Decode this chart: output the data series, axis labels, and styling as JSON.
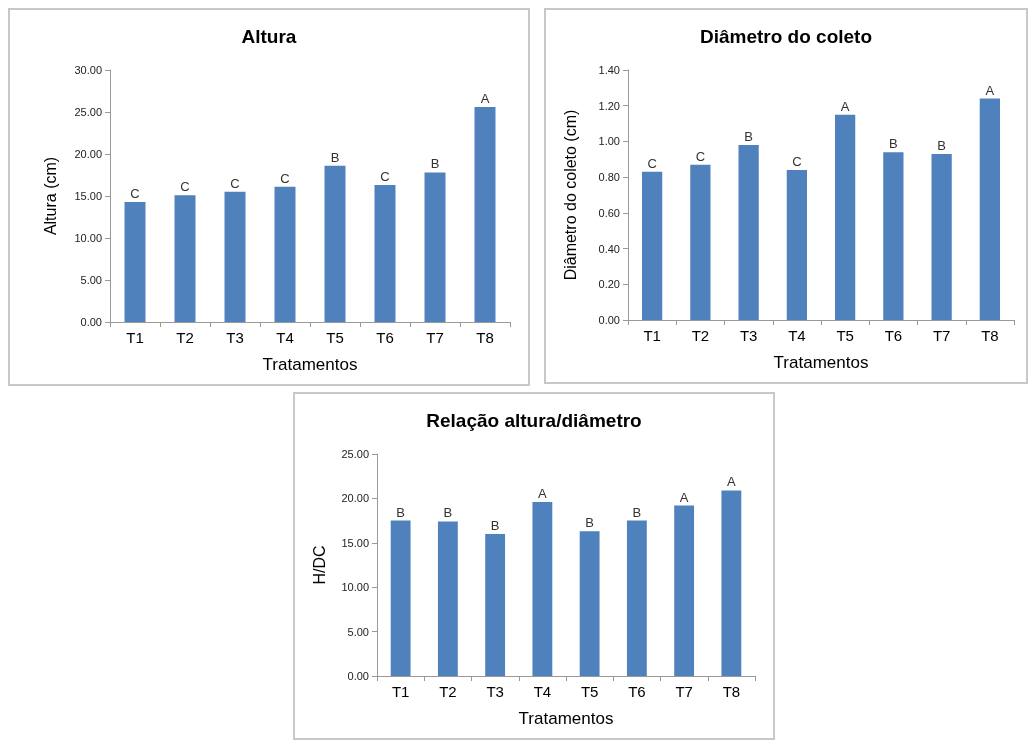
{
  "chart_data": [
    {
      "type": "bar",
      "title": "Altura",
      "xlabel": "Tratamentos",
      "ylabel": "Altura (cm)",
      "categories": [
        "T1",
        "T2",
        "T3",
        "T4",
        "T5",
        "T6",
        "T7",
        "T8"
      ],
      "values": [
        14.3,
        15.1,
        15.5,
        16.1,
        18.6,
        16.3,
        17.8,
        25.6
      ],
      "color": "#4f81bd",
      "value_labels": [
        "C",
        "C",
        "C",
        "C",
        "B",
        "C",
        "B",
        "A"
      ],
      "ylim": [
        0,
        30
      ],
      "yticks": [
        {
          "value": 0,
          "label": "0.00"
        },
        {
          "value": 5,
          "label": "5.00"
        },
        {
          "value": 10,
          "label": "10.00"
        },
        {
          "value": 15,
          "label": "15.00"
        },
        {
          "value": 20,
          "label": "20.00"
        },
        {
          "value": 25,
          "label": "25.00"
        },
        {
          "value": 30,
          "label": "30.00"
        }
      ],
      "grid": false
    },
    {
      "type": "bar",
      "title": "Diâmetro do coleto",
      "xlabel": "Tratamentos",
      "ylabel": "Diâmetro do coleto (cm)",
      "categories": [
        "T1",
        "T2",
        "T3",
        "T4",
        "T5",
        "T6",
        "T7",
        "T8"
      ],
      "values": [
        0.83,
        0.87,
        0.98,
        0.84,
        1.15,
        0.94,
        0.93,
        1.24
      ],
      "color": "#4f81bd",
      "value_labels": [
        "C",
        "C",
        "B",
        "C",
        "A",
        "B",
        "B",
        "A"
      ],
      "ylim": [
        0,
        1.4
      ],
      "yticks": [
        {
          "value": 0,
          "label": "0.00"
        },
        {
          "value": 0.2,
          "label": "0.20"
        },
        {
          "value": 0.4,
          "label": "0.40"
        },
        {
          "value": 0.6,
          "label": "0.60"
        },
        {
          "value": 0.8,
          "label": "0.80"
        },
        {
          "value": 1,
          "label": "1.00"
        },
        {
          "value": 1.2,
          "label": "1.20"
        },
        {
          "value": 1.4,
          "label": "1.40"
        }
      ],
      "grid": false
    },
    {
      "type": "bar",
      "title": "Relação altura/diâmetro",
      "xlabel": "Tratamentos",
      "ylabel": "H/DC",
      "categories": [
        "T1",
        "T2",
        "T3",
        "T4",
        "T5",
        "T6",
        "T7",
        "T8"
      ],
      "values": [
        17.5,
        17.4,
        16.0,
        19.6,
        16.3,
        17.5,
        19.2,
        20.9
      ],
      "color": "#4f81bd",
      "value_labels": [
        "B",
        "B",
        "B",
        "A",
        "B",
        "B",
        "A",
        "A"
      ],
      "ylim": [
        0,
        25
      ],
      "yticks": [
        {
          "value": 0,
          "label": "0.00"
        },
        {
          "value": 5,
          "label": "5.00"
        },
        {
          "value": 10,
          "label": "10.00"
        },
        {
          "value": 15,
          "label": "15.00"
        },
        {
          "value": 20,
          "label": "20.00"
        },
        {
          "value": 25,
          "label": "25.00"
        }
      ],
      "grid": false
    }
  ]
}
